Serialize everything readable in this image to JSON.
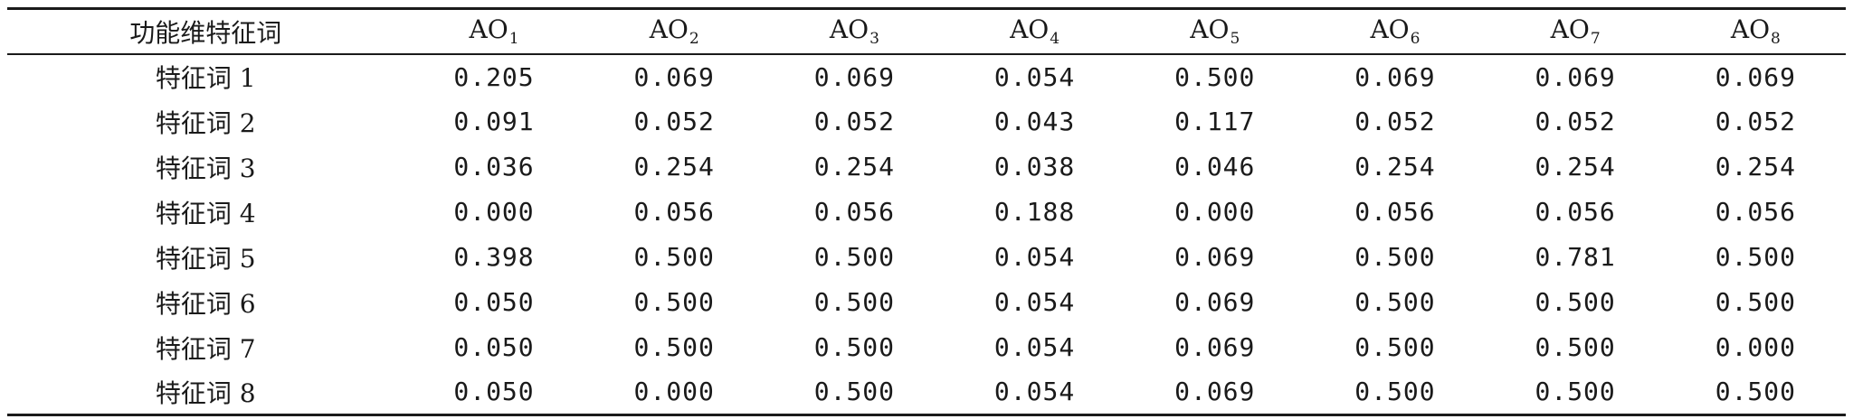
{
  "table": {
    "corner_header": "功能维特征词",
    "columns": [
      {
        "base": "AO",
        "sub": "1"
      },
      {
        "base": "AO",
        "sub": "2"
      },
      {
        "base": "AO",
        "sub": "3"
      },
      {
        "base": "AO",
        "sub": "4"
      },
      {
        "base": "AO",
        "sub": "5"
      },
      {
        "base": "AO",
        "sub": "6"
      },
      {
        "base": "AO",
        "sub": "7"
      },
      {
        "base": "AO",
        "sub": "8"
      }
    ],
    "rows": [
      {
        "label": "特征词 1",
        "values": [
          "0.205",
          "0.069",
          "0.069",
          "0.054",
          "0.500",
          "0.069",
          "0.069",
          "0.069"
        ]
      },
      {
        "label": "特征词 2",
        "values": [
          "0.091",
          "0.052",
          "0.052",
          "0.043",
          "0.117",
          "0.052",
          "0.052",
          "0.052"
        ]
      },
      {
        "label": "特征词 3",
        "values": [
          "0.036",
          "0.254",
          "0.254",
          "0.038",
          "0.046",
          "0.254",
          "0.254",
          "0.254"
        ]
      },
      {
        "label": "特征词 4",
        "values": [
          "0.000",
          "0.056",
          "0.056",
          "0.188",
          "0.000",
          "0.056",
          "0.056",
          "0.056"
        ]
      },
      {
        "label": "特征词 5",
        "values": [
          "0.398",
          "0.500",
          "0.500",
          "0.054",
          "0.069",
          "0.500",
          "0.781",
          "0.500"
        ]
      },
      {
        "label": "特征词 6",
        "values": [
          "0.050",
          "0.500",
          "0.500",
          "0.054",
          "0.069",
          "0.500",
          "0.500",
          "0.500"
        ]
      },
      {
        "label": "特征词 7",
        "values": [
          "0.050",
          "0.500",
          "0.500",
          "0.054",
          "0.069",
          "0.500",
          "0.500",
          "0.000"
        ]
      },
      {
        "label": "特征词 8",
        "values": [
          "0.050",
          "0.000",
          "0.500",
          "0.054",
          "0.069",
          "0.500",
          "0.500",
          "0.500"
        ]
      }
    ]
  }
}
